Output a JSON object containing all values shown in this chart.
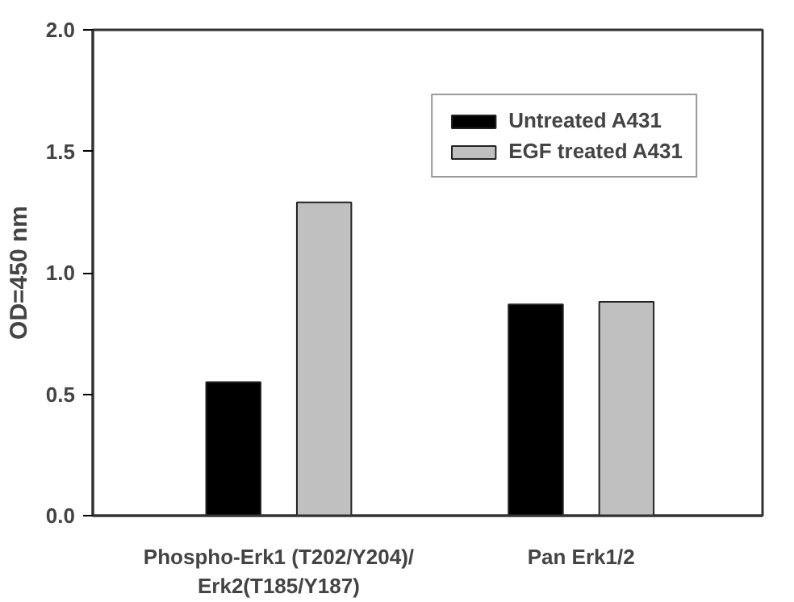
{
  "chart_data": {
    "type": "bar",
    "ylabel": "OD=450 nm",
    "categories": [
      "Phospho-Erk1 (T202/Y204)/\nErk2(T185/Y187)",
      "Pan Erk1/2"
    ],
    "series": [
      {
        "name": "Untreated A431",
        "color": "#000000",
        "values": [
          0.55,
          0.87
        ]
      },
      {
        "name": "EGF treated A431",
        "color": "#c0c0c0",
        "values": [
          1.29,
          0.88
        ]
      }
    ],
    "ylim": [
      0,
      2.0
    ],
    "yticks": [
      {
        "value": 0,
        "label": "0.0"
      },
      {
        "value": 0.5,
        "label": "0.5"
      },
      {
        "value": 1.0,
        "label": "1.0"
      },
      {
        "value": 1.5,
        "label": "1.5"
      },
      {
        "value": 2.0,
        "label": "2.0"
      }
    ],
    "grid": false,
    "legend": "top right"
  }
}
